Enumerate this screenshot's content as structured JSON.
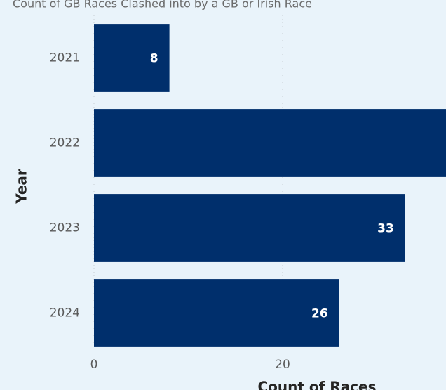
{
  "chart_data": {
    "type": "bar",
    "orientation": "horizontal",
    "title": "Count of GB Races Clashed into by a GB or Irish Race",
    "x_label": "Count of Races",
    "y_label": "Year",
    "categories": [
      "2021",
      "2022",
      "2023",
      "2024"
    ],
    "values": [
      8,
      40,
      33,
      26
    ],
    "color": "#002f6c",
    "xlim": [
      0,
      40
    ],
    "xticks": [
      0,
      20
    ],
    "grid": true
  }
}
